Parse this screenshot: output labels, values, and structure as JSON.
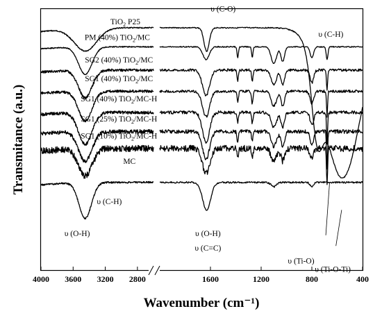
{
  "chart_data": {
    "type": "line",
    "xlabel": "Wavenumber (cm⁻¹)",
    "ylabel": "Transmitance (a.u.)",
    "x_reversed": true,
    "x_break": [
      2600,
      2000
    ],
    "xlim": [
      4000,
      400
    ],
    "x_ticks": [
      {
        "value": 4000,
        "label": "4000"
      },
      {
        "value": 3600,
        "label": "3600"
      },
      {
        "value": 3200,
        "label": "3200"
      },
      {
        "value": 2800,
        "label": "2800"
      },
      {
        "value": 1600,
        "label": "1600"
      },
      {
        "value": 1200,
        "label": "1200"
      },
      {
        "value": 800,
        "label": "800"
      },
      {
        "value": 400,
        "label": "400"
      }
    ],
    "series": [
      {
        "name": "TiO₂ P25",
        "label_main": "TiO",
        "label_sub": "2",
        "label_tail": " P25",
        "label_x": 2950,
        "label_y": -0.3,
        "offset": 0,
        "bands": [
          [
            3450,
            200,
            1.1
          ],
          [
            1630,
            30,
            1.1
          ],
          [
            560,
            200,
            7.1
          ],
          [
            760,
            60,
            3.0
          ]
        ],
        "noise": 0.05,
        "edge_rise": 0.6
      },
      {
        "name": "PM (40%) TiO₂/MC",
        "label_main": "PM (40%) TiO",
        "label_sub": "2",
        "label_tail": "/MC",
        "label_x": 3050,
        "label_y": 0.45,
        "offset": 0.9,
        "bands": [
          [
            3450,
            120,
            1.3
          ],
          [
            1635,
            35,
            0.6
          ],
          [
            1385,
            8,
            0.5
          ],
          [
            1270,
            8,
            0.5
          ],
          [
            1100,
            30,
            0.8
          ],
          [
            1030,
            20,
            0.7
          ],
          [
            800,
            20,
            0.5
          ],
          [
            680,
            10,
            0.6
          ]
        ],
        "noise": 0.05,
        "edge_rise": 0.3
      },
      {
        "name": "SG2 (40%) TiO₂/MC",
        "label_main": "SG2 (40%) TiO",
        "label_sub": "2",
        "label_tail": "/MC",
        "label_x": 3030,
        "label_y": 1.5,
        "offset": 2.0,
        "bands": [
          [
            3450,
            120,
            1.3
          ],
          [
            1635,
            40,
            1.2
          ],
          [
            1385,
            8,
            0.5
          ],
          [
            1270,
            8,
            0.5
          ],
          [
            1100,
            30,
            0.7
          ],
          [
            1030,
            20,
            0.7
          ],
          [
            800,
            20,
            0.6
          ],
          [
            680,
            6,
            1.0
          ]
        ],
        "noise": 0.12,
        "edge_rise": 0.3
      },
      {
        "name": "SG1 (40%) TiO₂/MC",
        "label_main": "SG1 (40%) TiO",
        "label_sub": "2",
        "label_tail": "/MC",
        "label_x": 3030,
        "label_y": 2.4,
        "offset": 3.0,
        "bands": [
          [
            3450,
            120,
            1.4
          ],
          [
            1635,
            40,
            1.2
          ],
          [
            1385,
            8,
            0.5
          ],
          [
            1270,
            8,
            0.6
          ],
          [
            1100,
            30,
            0.7
          ],
          [
            1030,
            20,
            0.7
          ],
          [
            800,
            20,
            0.6
          ],
          [
            680,
            6,
            1.2
          ]
        ],
        "noise": 0.12,
        "edge_rise": 0.3
      },
      {
        "name": "SG1 (40%) TiO₂/MC-H",
        "label_main": "SG1 (40%) TiO",
        "label_sub": "2",
        "label_tail": "/MC-H",
        "label_x": 3030,
        "label_y": 3.35,
        "offset": 4.0,
        "bands": [
          [
            3450,
            120,
            1.5
          ],
          [
            1635,
            40,
            1.4
          ],
          [
            1385,
            8,
            0.5
          ],
          [
            1270,
            8,
            0.5
          ],
          [
            1100,
            30,
            0.7
          ],
          [
            1030,
            20,
            0.7
          ],
          [
            800,
            20,
            0.6
          ],
          [
            680,
            6,
            1.5
          ]
        ],
        "noise": 0.15,
        "edge_rise": 0.3
      },
      {
        "name": "SG1 (25%) TiO₂/MC-H",
        "label_main": "SG1 (25%) TiO",
        "label_sub": "2",
        "label_tail": "/MC-H",
        "label_x": 3030,
        "label_y": 4.3,
        "offset": 4.9,
        "bands": [
          [
            3450,
            120,
            1.4
          ],
          [
            1635,
            40,
            1.3
          ],
          [
            1385,
            8,
            0.5
          ],
          [
            1270,
            8,
            0.5
          ],
          [
            1100,
            30,
            0.7
          ],
          [
            1030,
            20,
            0.7
          ],
          [
            800,
            20,
            0.6
          ],
          [
            680,
            6,
            1.7
          ]
        ],
        "noise": 0.18,
        "edge_rise": 0.3
      },
      {
        "name": "SG1 (10%) TiO₂/MC-H",
        "label_main": "SG1 (10%) TiO",
        "label_sub": "2",
        "label_tail": "/MC-H",
        "label_x": 3030,
        "label_y": 5.1,
        "offset": 5.7,
        "bands": [
          [
            3450,
            120,
            1.3
          ],
          [
            1635,
            40,
            1.2
          ],
          [
            1385,
            8,
            0.4
          ],
          [
            1270,
            8,
            0.5
          ],
          [
            1100,
            30,
            0.6
          ],
          [
            1030,
            20,
            0.6
          ],
          [
            800,
            20,
            0.5
          ],
          [
            680,
            6,
            1.7
          ]
        ],
        "noise": 0.3,
        "edge_rise": 0.4
      },
      {
        "name": "MC",
        "label_main": "MC",
        "label_sub": "",
        "label_tail": "",
        "label_x": 2900,
        "label_y": 6.3,
        "offset": 7.3,
        "bands": [
          [
            3450,
            110,
            1.7
          ],
          [
            1630,
            45,
            1.3
          ],
          [
            1100,
            30,
            0.2
          ],
          [
            800,
            20,
            0.2
          ]
        ],
        "noise": 0.08,
        "edge_rise": 0.4
      }
    ],
    "annotations": [
      {
        "text": "υ (C-O)",
        "x": 1500,
        "y": -0.9
      },
      {
        "text": "υ (C-H)",
        "x": 650,
        "y": 0.3
      },
      {
        "text": "υ (C-H)",
        "x": 3150,
        "y": 8.2
      },
      {
        "text": "υ (O-H)",
        "x": 3550,
        "y": 9.7
      },
      {
        "text": "υ (O-H)",
        "x": 1620,
        "y": 9.7
      },
      {
        "text": "υ (C=C)",
        "x": 1620,
        "y": 10.4
      },
      {
        "text": "υ (Ti-O)",
        "x": 885,
        "y": 11.0
      },
      {
        "text": "υ (Ti-O-Ti)",
        "x": 635,
        "y": 11.4
      }
    ]
  }
}
